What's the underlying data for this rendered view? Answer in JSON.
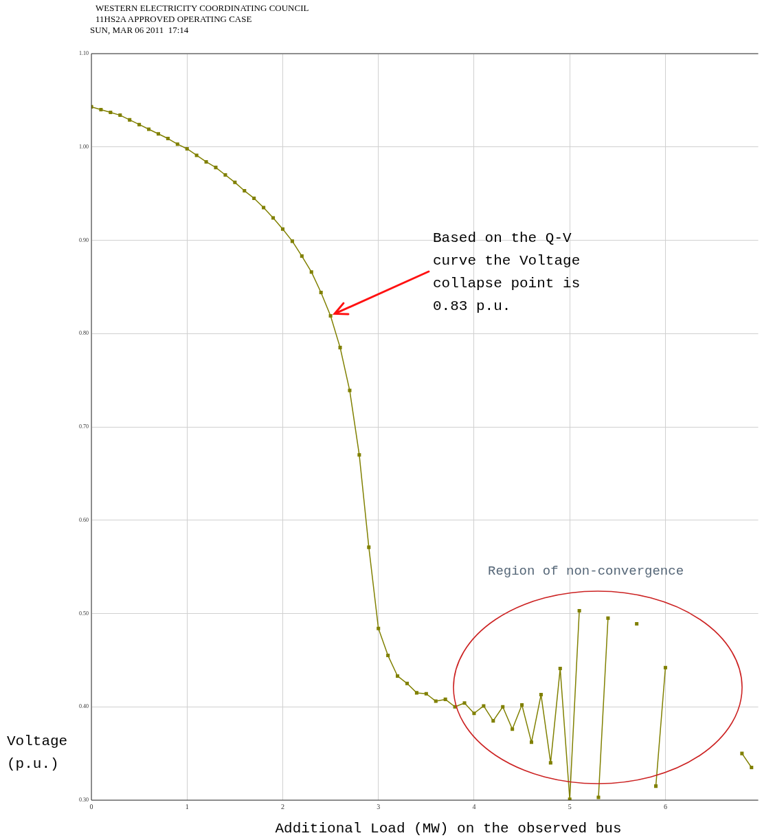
{
  "chart_data": {
    "type": "line",
    "title": "WESTERN ELECTRICITY COORDINATING COUNCIL",
    "subtitle": "11HS2A APPROVED OPERATING CASE",
    "xlabel": "Additional Load (MW) on the observed bus",
    "ylabel": "Voltage (p.u.)",
    "annotations": [
      "SUN, MAR 06 2011  17:14",
      {
        "text": "Based on the Q-V curve the Voltage collapse point is 0.83 p.u.",
        "x": 2.5,
        "y": 0.819
      },
      "Region of non-convergence"
    ],
    "x": [
      0,
      0.1,
      0.2,
      0.3,
      0.4,
      0.5,
      0.6,
      0.7,
      0.8,
      0.9,
      1.0,
      1.1,
      1.2,
      1.3,
      1.4,
      1.5,
      1.6,
      1.7,
      1.8,
      1.9,
      2.0,
      2.1,
      2.2,
      2.3,
      2.4,
      2.5,
      2.6,
      2.7,
      2.8,
      2.9,
      3.0,
      3.1,
      3.2,
      3.3,
      3.4,
      3.5,
      3.6,
      3.7,
      3.8,
      3.9,
      4.0,
      4.1,
      4.2,
      4.3,
      4.4,
      4.5,
      4.6,
      4.7,
      4.8,
      4.9,
      5.0,
      5.1,
      5.2,
      5.3,
      5.4,
      5.5,
      5.6,
      5.7,
      5.8,
      5.9,
      6.0,
      6.1,
      6.2,
      6.3,
      6.4,
      6.5,
      6.6,
      6.7,
      6.8,
      6.9
    ],
    "series": [
      {
        "color": "#808000",
        "values": [
          1.043,
          1.04,
          1.037,
          1.034,
          1.029,
          1.024,
          1.019,
          1.014,
          1.009,
          1.003,
          0.998,
          0.991,
          0.984,
          0.978,
          0.97,
          0.962,
          0.953,
          0.945,
          0.935,
          0.924,
          0.912,
          0.899,
          0.883,
          0.866,
          0.844,
          0.819,
          0.785,
          0.739,
          0.67,
          0.571,
          0.484,
          0.455,
          0.433,
          0.425,
          0.415,
          0.414,
          0.406,
          0.408,
          0.4,
          0.404,
          0.393,
          0.401,
          0.385,
          0.4,
          0.376,
          0.402,
          0.362,
          0.413,
          0.34,
          0.441,
          0.301,
          0.503,
          null,
          0.303,
          0.495,
          null,
          null,
          0.489,
          null,
          0.315,
          0.442,
          null,
          null,
          null,
          null,
          null,
          null,
          null,
          0.35,
          0.335
        ]
      }
    ],
    "xlim": [
      0,
      6.97
    ],
    "xticks": [
      0,
      1,
      2,
      3,
      4,
      5,
      6
    ],
    "ylim": [
      0.3,
      1.1
    ],
    "yticks": [
      {
        "value": 0.3,
        "label": "0.30"
      },
      {
        "value": 0.4,
        "label": "0.40"
      },
      {
        "value": 0.5,
        "label": "0.50"
      },
      {
        "value": 0.6,
        "label": "0.60"
      },
      {
        "value": 0.7,
        "label": "0.70"
      },
      {
        "value": 0.8,
        "label": "0.80"
      },
      {
        "value": 0.9,
        "label": "0.90"
      },
      {
        "value": 1.0,
        "label": "1.00"
      },
      {
        "value": 1.1,
        "label": "1.10"
      }
    ],
    "grid": true,
    "legend": false,
    "marker": "square",
    "line_style": "solid"
  }
}
